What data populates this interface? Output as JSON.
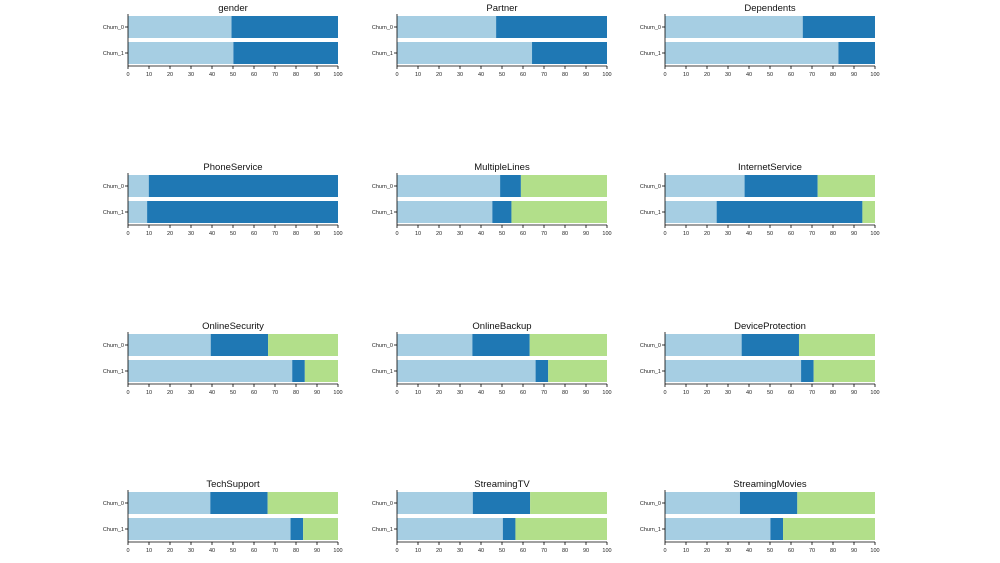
{
  "colors": {
    "seg1": "#a6cee3",
    "seg2": "#1f78b4",
    "seg3": "#b2df8a"
  },
  "chart_data": [
    {
      "type": "bar",
      "orientation": "horizontal",
      "stacked": true,
      "title": "gender",
      "categories": [
        "Churn_0",
        "Churn_1"
      ],
      "xlim": [
        0,
        100
      ],
      "xticks": [
        "0",
        "10",
        "20",
        "30",
        "40",
        "50",
        "60",
        "70",
        "80",
        "90",
        "100"
      ],
      "series": [
        {
          "values": [
            49.3,
            50.2
          ]
        },
        {
          "values": [
            50.7,
            49.8
          ]
        }
      ]
    },
    {
      "type": "bar",
      "orientation": "horizontal",
      "stacked": true,
      "title": "Partner",
      "categories": [
        "Churn_0",
        "Churn_1"
      ],
      "xlim": [
        0,
        100
      ],
      "xticks": [
        "0",
        "10",
        "20",
        "30",
        "40",
        "50",
        "60",
        "70",
        "80",
        "90",
        "100"
      ],
      "series": [
        {
          "values": [
            47.2,
            64.3
          ]
        },
        {
          "values": [
            52.8,
            35.7
          ]
        }
      ]
    },
    {
      "type": "bar",
      "orientation": "horizontal",
      "stacked": true,
      "title": "Dependents",
      "categories": [
        "Churn_0",
        "Churn_1"
      ],
      "xlim": [
        0,
        100
      ],
      "xticks": [
        "0",
        "10",
        "20",
        "30",
        "40",
        "50",
        "60",
        "70",
        "80",
        "90",
        "100"
      ],
      "series": [
        {
          "values": [
            65.6,
            82.6
          ]
        },
        {
          "values": [
            34.4,
            17.4
          ]
        }
      ]
    },
    {
      "type": "bar",
      "orientation": "horizontal",
      "stacked": true,
      "title": "PhoneService",
      "categories": [
        "Churn_0",
        "Churn_1"
      ],
      "xlim": [
        0,
        100
      ],
      "xticks": [
        "0",
        "10",
        "20",
        "30",
        "40",
        "50",
        "60",
        "70",
        "80",
        "90",
        "100"
      ],
      "series": [
        {
          "values": [
            9.9,
            9.1
          ]
        },
        {
          "values": [
            90.1,
            90.9
          ]
        }
      ]
    },
    {
      "type": "bar",
      "orientation": "horizontal",
      "stacked": true,
      "title": "MultipleLines",
      "categories": [
        "Churn_0",
        "Churn_1"
      ],
      "xlim": [
        0,
        100
      ],
      "xticks": [
        "0",
        "10",
        "20",
        "30",
        "40",
        "50",
        "60",
        "70",
        "80",
        "90",
        "100"
      ],
      "series": [
        {
          "values": [
            49.1,
            45.4
          ]
        },
        {
          "values": [
            9.9,
            9.1
          ]
        },
        {
          "values": [
            41.0,
            45.5
          ]
        }
      ]
    },
    {
      "type": "bar",
      "orientation": "horizontal",
      "stacked": true,
      "title": "InternetService",
      "categories": [
        "Churn_0",
        "Churn_1"
      ],
      "xlim": [
        0,
        100
      ],
      "xticks": [
        "0",
        "10",
        "20",
        "30",
        "40",
        "50",
        "60",
        "70",
        "80",
        "90",
        "100"
      ],
      "series": [
        {
          "values": [
            37.9,
            24.6
          ]
        },
        {
          "values": [
            34.8,
            69.4
          ]
        },
        {
          "values": [
            27.3,
            6.0
          ]
        }
      ]
    },
    {
      "type": "bar",
      "orientation": "horizontal",
      "stacked": true,
      "title": "OnlineSecurity",
      "categories": [
        "Churn_0",
        "Churn_1"
      ],
      "xlim": [
        0,
        100
      ],
      "xticks": [
        "0",
        "10",
        "20",
        "30",
        "40",
        "50",
        "60",
        "70",
        "80",
        "90",
        "100"
      ],
      "series": [
        {
          "values": [
            39.4,
            78.2
          ]
        },
        {
          "values": [
            27.3,
            6.0
          ]
        },
        {
          "values": [
            33.3,
            15.8
          ]
        }
      ]
    },
    {
      "type": "bar",
      "orientation": "horizontal",
      "stacked": true,
      "title": "OnlineBackup",
      "categories": [
        "Churn_0",
        "Churn_1"
      ],
      "xlim": [
        0,
        100
      ],
      "xticks": [
        "0",
        "10",
        "20",
        "30",
        "40",
        "50",
        "60",
        "70",
        "80",
        "90",
        "100"
      ],
      "series": [
        {
          "values": [
            35.9,
            66.0
          ]
        },
        {
          "values": [
            27.3,
            6.0
          ]
        },
        {
          "values": [
            36.8,
            28.0
          ]
        }
      ]
    },
    {
      "type": "bar",
      "orientation": "horizontal",
      "stacked": true,
      "title": "DeviceProtection",
      "categories": [
        "Churn_0",
        "Churn_1"
      ],
      "xlim": [
        0,
        100
      ],
      "xticks": [
        "0",
        "10",
        "20",
        "30",
        "40",
        "50",
        "60",
        "70",
        "80",
        "90",
        "100"
      ],
      "series": [
        {
          "values": [
            36.5,
            64.8
          ]
        },
        {
          "values": [
            27.3,
            6.0
          ]
        },
        {
          "values": [
            36.2,
            29.2
          ]
        }
      ]
    },
    {
      "type": "bar",
      "orientation": "horizontal",
      "stacked": true,
      "title": "TechSupport",
      "categories": [
        "Churn_0",
        "Churn_1"
      ],
      "xlim": [
        0,
        100
      ],
      "xticks": [
        "0",
        "10",
        "20",
        "30",
        "40",
        "50",
        "60",
        "70",
        "80",
        "90",
        "100"
      ],
      "series": [
        {
          "values": [
            39.2,
            77.4
          ]
        },
        {
          "values": [
            27.3,
            6.0
          ]
        },
        {
          "values": [
            33.5,
            16.6
          ]
        }
      ]
    },
    {
      "type": "bar",
      "orientation": "horizontal",
      "stacked": true,
      "title": "StreamingTV",
      "categories": [
        "Churn_0",
        "Churn_1"
      ],
      "xlim": [
        0,
        100
      ],
      "xticks": [
        "0",
        "10",
        "20",
        "30",
        "40",
        "50",
        "60",
        "70",
        "80",
        "90",
        "100"
      ],
      "series": [
        {
          "values": [
            36.1,
            50.4
          ]
        },
        {
          "values": [
            27.3,
            6.0
          ]
        },
        {
          "values": [
            36.6,
            43.6
          ]
        }
      ]
    },
    {
      "type": "bar",
      "orientation": "horizontal",
      "stacked": true,
      "title": "StreamingMovies",
      "categories": [
        "Churn_0",
        "Churn_1"
      ],
      "xlim": [
        0,
        100
      ],
      "xticks": [
        "0",
        "10",
        "20",
        "30",
        "40",
        "50",
        "60",
        "70",
        "80",
        "90",
        "100"
      ],
      "series": [
        {
          "values": [
            35.7,
            50.2
          ]
        },
        {
          "values": [
            27.3,
            6.0
          ]
        },
        {
          "values": [
            37.0,
            43.8
          ]
        }
      ]
    }
  ]
}
